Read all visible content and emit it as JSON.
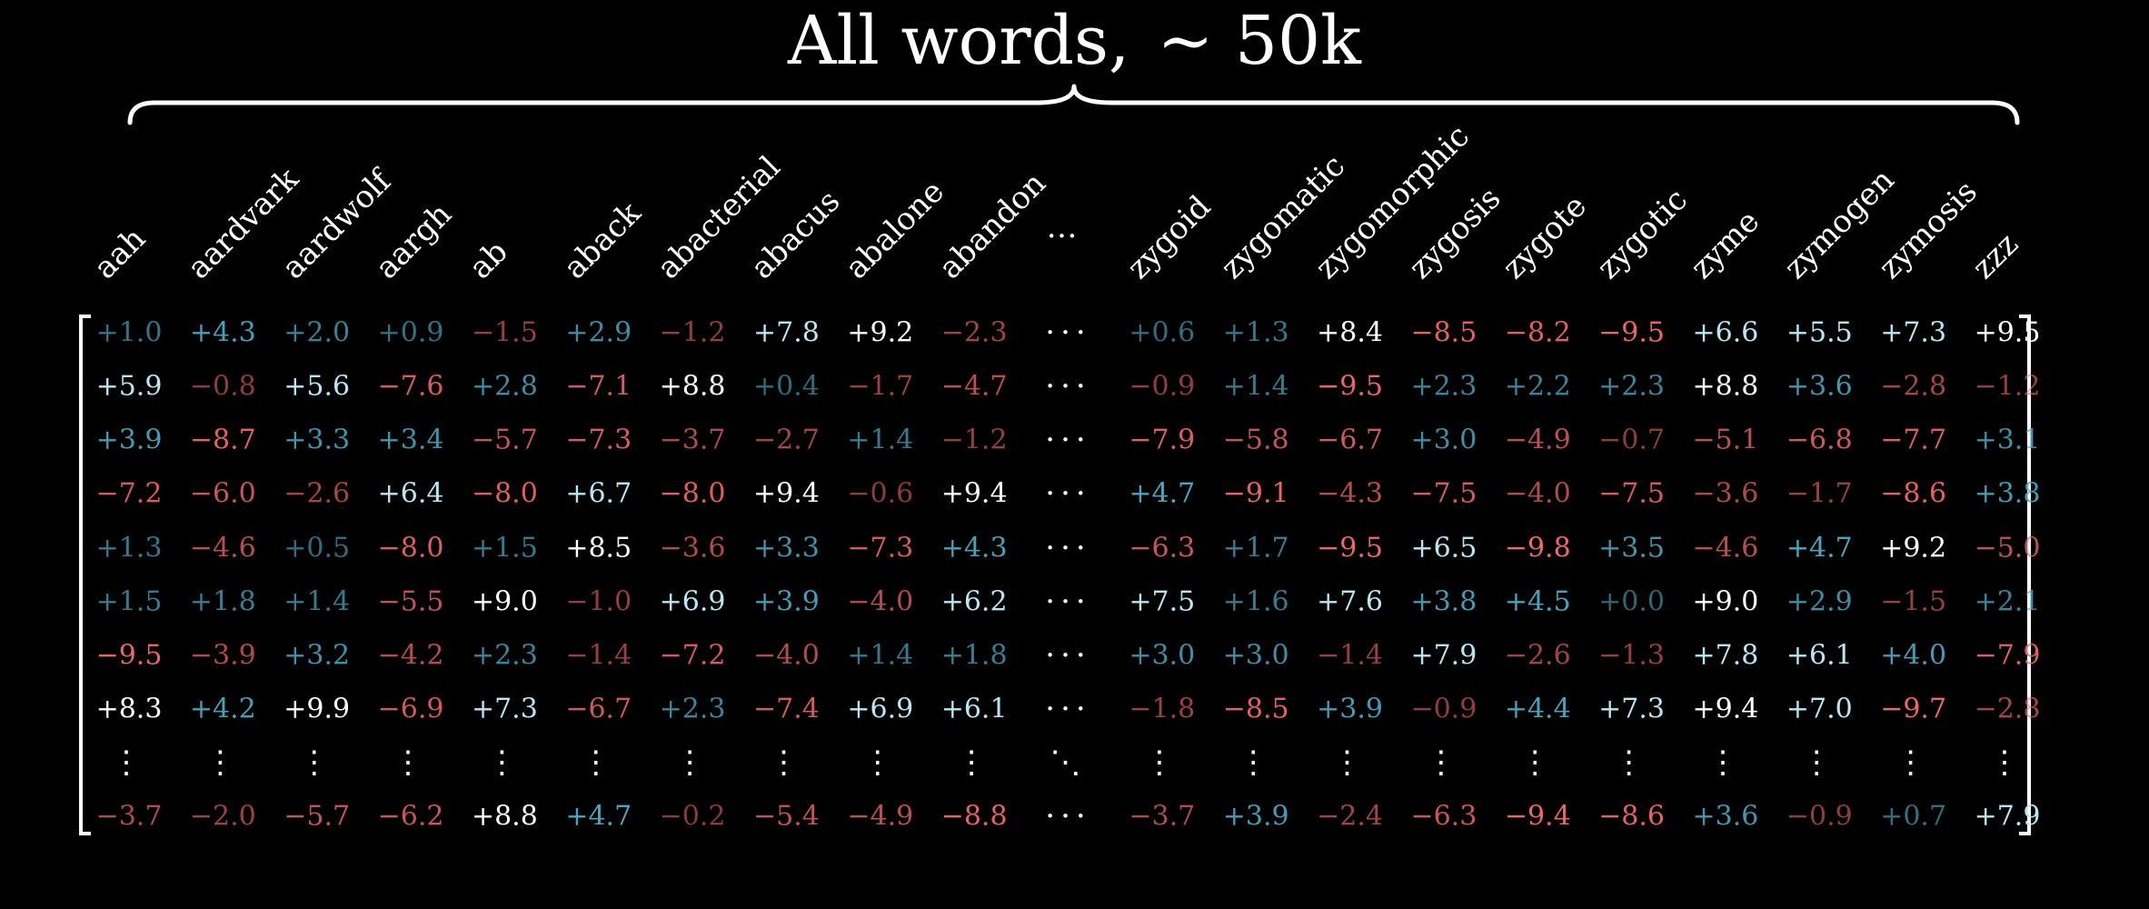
{
  "title": {
    "text": "All words,",
    "approx": "~ 50k"
  },
  "columns": [
    "aah",
    "aardvark",
    "aardwolf",
    "aargh",
    "ab",
    "aback",
    "abacterial",
    "abacus",
    "abalone",
    "abandon",
    "…",
    "zygoid",
    "zygomatic",
    "zygomorphic",
    "zygosis",
    "zygote",
    "zygotic",
    "zyme",
    "zymogen",
    "zymosis",
    "zzz"
  ],
  "ellipsis_glyph": "···",
  "vertical_ellipsis_glyph": "⋮",
  "diagonal_ellipsis_glyph": "⋱",
  "rows": [
    [
      "+1.0",
      "+4.3",
      "+2.0",
      "+0.9",
      "−1.5",
      "+2.9",
      "−1.2",
      "+7.8",
      "+9.2",
      "−2.3",
      "···",
      "+0.6",
      "+1.3",
      "+8.4",
      "−8.5",
      "−8.2",
      "−9.5",
      "+6.6",
      "+5.5",
      "+7.3",
      "+9.5"
    ],
    [
      "+5.9",
      "−0.8",
      "+5.6",
      "−7.6",
      "+2.8",
      "−7.1",
      "+8.8",
      "+0.4",
      "−1.7",
      "−4.7",
      "···",
      "−0.9",
      "+1.4",
      "−9.5",
      "+2.3",
      "+2.2",
      "+2.3",
      "+8.8",
      "+3.6",
      "−2.8",
      "−1.2"
    ],
    [
      "+3.9",
      "−8.7",
      "+3.3",
      "+3.4",
      "−5.7",
      "−7.3",
      "−3.7",
      "−2.7",
      "+1.4",
      "−1.2",
      "···",
      "−7.9",
      "−5.8",
      "−6.7",
      "+3.0",
      "−4.9",
      "−0.7",
      "−5.1",
      "−6.8",
      "−7.7",
      "+3.1"
    ],
    [
      "−7.2",
      "−6.0",
      "−2.6",
      "+6.4",
      "−8.0",
      "+6.7",
      "−8.0",
      "+9.4",
      "−0.6",
      "+9.4",
      "···",
      "+4.7",
      "−9.1",
      "−4.3",
      "−7.5",
      "−4.0",
      "−7.5",
      "−3.6",
      "−1.7",
      "−8.6",
      "+3.8"
    ],
    [
      "+1.3",
      "−4.6",
      "+0.5",
      "−8.0",
      "+1.5",
      "+8.5",
      "−3.6",
      "+3.3",
      "−7.3",
      "+4.3",
      "···",
      "−6.3",
      "+1.7",
      "−9.5",
      "+6.5",
      "−9.8",
      "+3.5",
      "−4.6",
      "+4.7",
      "+9.2",
      "−5.0"
    ],
    [
      "+1.5",
      "+1.8",
      "+1.4",
      "−5.5",
      "+9.0",
      "−1.0",
      "+6.9",
      "+3.9",
      "−4.0",
      "+6.2",
      "···",
      "+7.5",
      "+1.6",
      "+7.6",
      "+3.8",
      "+4.5",
      "+0.0",
      "+9.0",
      "+2.9",
      "−1.5",
      "+2.1"
    ],
    [
      "−9.5",
      "−3.9",
      "+3.2",
      "−4.2",
      "+2.3",
      "−1.4",
      "−7.2",
      "−4.0",
      "+1.4",
      "+1.8",
      "···",
      "+3.0",
      "+3.0",
      "−1.4",
      "+7.9",
      "−2.6",
      "−1.3",
      "+7.8",
      "+6.1",
      "+4.0",
      "−7.9"
    ],
    [
      "+8.3",
      "+4.2",
      "+9.9",
      "−6.9",
      "+7.3",
      "−6.7",
      "+2.3",
      "−7.4",
      "+6.9",
      "+6.1",
      "···",
      "−1.8",
      "−8.5",
      "+3.9",
      "−0.9",
      "+4.4",
      "+7.3",
      "+9.4",
      "+7.0",
      "−9.7",
      "−2.8"
    ],
    [
      "⋮",
      "⋮",
      "⋮",
      "⋮",
      "⋮",
      "⋮",
      "⋮",
      "⋮",
      "⋮",
      "⋮",
      "⋱",
      "⋮",
      "⋮",
      "⋮",
      "⋮",
      "⋮",
      "⋮",
      "⋮",
      "⋮",
      "⋮",
      "⋮"
    ],
    [
      "−3.7",
      "−2.0",
      "−5.7",
      "−6.2",
      "+8.8",
      "+4.7",
      "−0.2",
      "−5.4",
      "−4.9",
      "−8.8",
      "···",
      "−3.7",
      "+3.9",
      "−2.4",
      "−6.3",
      "−9.4",
      "−8.6",
      "+3.6",
      "−0.9",
      "+0.7",
      "+7.9"
    ]
  ],
  "colors": {
    "positive": "#4fa8c4",
    "negative": "#f06a6a",
    "neutral": "#ffffff",
    "background": "#000000"
  }
}
